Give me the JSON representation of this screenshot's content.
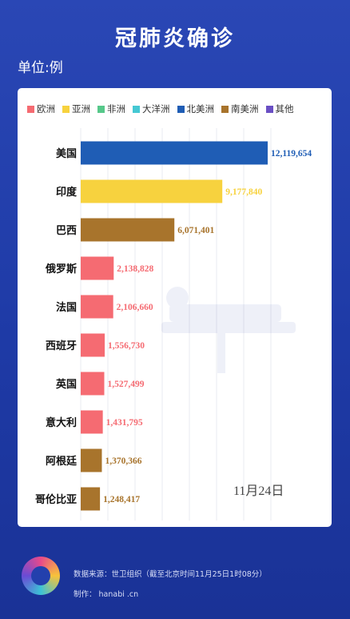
{
  "header": {
    "title": "冠肺炎确诊",
    "unit": "单位:例"
  },
  "legend": [
    {
      "label": "欧洲",
      "color": "#f56b72"
    },
    {
      "label": "亚洲",
      "color": "#f7d23e"
    },
    {
      "label": "非洲",
      "color": "#56c88a"
    },
    {
      "label": "大洋洲",
      "color": "#45c8d3"
    },
    {
      "label": "北美洲",
      "color": "#1f5db5"
    },
    {
      "label": "南美洲",
      "color": "#a8742c"
    },
    {
      "label": "其他",
      "color": "#6a4fc4"
    }
  ],
  "chart_data": {
    "type": "bar",
    "orientation": "horizontal",
    "date_label": "11月24日",
    "categories": [
      "美国",
      "印度",
      "巴西",
      "俄罗斯",
      "法国",
      "西班牙",
      "英国",
      "意大利",
      "阿根廷",
      "哥伦比亚"
    ],
    "values": [
      12119654,
      9177840,
      6071401,
      2138828,
      2106660,
      1556730,
      1527499,
      1431795,
      1370366,
      1248417
    ],
    "value_labels": [
      "12,119,654",
      "9,177,840",
      "6,071,401",
      "2,138,828",
      "2,106,660",
      "1,556,730",
      "1,527,499",
      "1,431,795",
      "1,370,366",
      "1,248,417"
    ],
    "regions": [
      "北美洲",
      "亚洲",
      "南美洲",
      "欧洲",
      "欧洲",
      "欧洲",
      "欧洲",
      "欧洲",
      "南美洲",
      "南美洲"
    ],
    "x_min": 0,
    "x_max": 12119654
  },
  "footer": {
    "source": "数据来源：世卫组织（截至北京时间11月25日1时08分）",
    "maker": "制作： hanabi .cn"
  }
}
